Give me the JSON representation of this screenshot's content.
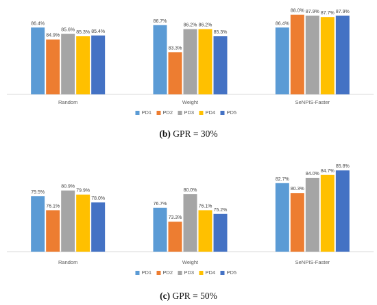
{
  "figure_panels": [
    {
      "caption_label": "(b)",
      "caption_text": "GPR = 30%"
    },
    {
      "caption_label": "(c)",
      "caption_text": "GPR = 50%"
    }
  ],
  "series_colors": [
    "#5b9bd5",
    "#ed7d31",
    "#a5a5a5",
    "#ffc000",
    "#4472c4"
  ],
  "chart_data": [
    {
      "type": "bar",
      "title": "",
      "xlabel": "",
      "ylabel": "",
      "categories": [
        "Random",
        "Weight",
        "SeNPIS-Faster"
      ],
      "ylim": [
        78,
        89
      ],
      "legend_position": "bottom",
      "grid": false,
      "series": [
        {
          "name": "PD1",
          "values": [
            86.4,
            86.7,
            86.4
          ],
          "labels": [
            "86.4%",
            "86.7%",
            "86.4%"
          ]
        },
        {
          "name": "PD2",
          "values": [
            84.9,
            83.3,
            88.0
          ],
          "labels": [
            "84.9%",
            "83.3%",
            "88.0%"
          ]
        },
        {
          "name": "PD3",
          "values": [
            85.6,
            86.2,
            87.9
          ],
          "labels": [
            "85.6%",
            "86.2%",
            "87.9%"
          ]
        },
        {
          "name": "PD4",
          "values": [
            85.3,
            86.2,
            87.7
          ],
          "labels": [
            "85.3%",
            "86.2%",
            "87.7%"
          ]
        },
        {
          "name": "PD5",
          "values": [
            85.4,
            85.3,
            87.9
          ],
          "labels": [
            "85.4%",
            "85.3%",
            "87.9%"
          ]
        }
      ]
    },
    {
      "type": "bar",
      "title": "",
      "xlabel": "",
      "ylabel": "",
      "categories": [
        "Random",
        "Weight",
        "SeNPIS-Faster"
      ],
      "ylim": [
        66,
        87
      ],
      "legend_position": "bottom",
      "grid": false,
      "series": [
        {
          "name": "PD1",
          "values": [
            79.5,
            76.7,
            82.7
          ],
          "labels": [
            "79.5%",
            "76.7%",
            "82.7%"
          ]
        },
        {
          "name": "PD2",
          "values": [
            76.1,
            73.3,
            80.3
          ],
          "labels": [
            "76.1%",
            "73.3%",
            "80.3%"
          ]
        },
        {
          "name": "PD3",
          "values": [
            80.9,
            80.0,
            84.0
          ],
          "labels": [
            "80.9%",
            "80.0%",
            "84.0%"
          ]
        },
        {
          "name": "PD4",
          "values": [
            79.9,
            76.1,
            84.7
          ],
          "labels": [
            "79.9%",
            "76.1%",
            "84.7%"
          ]
        },
        {
          "name": "PD5",
          "values": [
            78.0,
            75.2,
            85.8
          ],
          "labels": [
            "78.0%",
            "75.2%",
            "85.8%"
          ]
        }
      ]
    }
  ]
}
